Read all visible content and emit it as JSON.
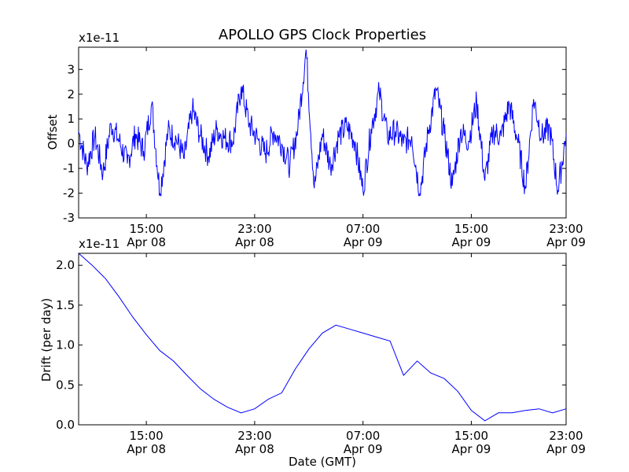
{
  "chart_data": [
    {
      "type": "line",
      "title": "APOLLO GPS Clock Properties",
      "ylabel": "Offset",
      "y_multiplier": "x1e-11",
      "ylim": [
        -3,
        3.9
      ],
      "yticks": [
        -3,
        -2,
        -1,
        0,
        1,
        2,
        3
      ],
      "ytick_labels": [
        "-3",
        "-2",
        "-1",
        "0",
        "1",
        "2",
        "3"
      ],
      "xticks": [
        {
          "time": "15:00",
          "date": "Apr 08"
        },
        {
          "time": "23:00",
          "date": "Apr 08"
        },
        {
          "time": "07:00",
          "date": "Apr 09"
        },
        {
          "time": "15:00",
          "date": "Apr 09"
        },
        {
          "time": "23:00",
          "date": "Apr 09"
        }
      ],
      "color": "#0000ff",
      "series": [
        {
          "x_hours": [
            0,
            0.6,
            1.2,
            1.8,
            2.4,
            3,
            3.6,
            4.2,
            4.8,
            5.4,
            6,
            6.6,
            7.2,
            7.8,
            8.4,
            9,
            9.6,
            10.2,
            10.8,
            11.4,
            12,
            12.6,
            13.2,
            13.8,
            14.4,
            15,
            15.6,
            16.2,
            16.8,
            17.4,
            18,
            18.6,
            19.2,
            19.8,
            20.4,
            21,
            21.6,
            22.2,
            22.8,
            23.4,
            24,
            24.6,
            25.2,
            25.8,
            26.4,
            27,
            27.6,
            28.2,
            28.8,
            29.4,
            30,
            30.6,
            31.2,
            31.8,
            32.4,
            33,
            33.6,
            34.2,
            34.8,
            35.4,
            36
          ],
          "values": [
            0.5,
            -0.9,
            0.3,
            -1.2,
            0.8,
            0.1,
            -0.8,
            0.4,
            -0.3,
            1.6,
            -2.0,
            0.5,
            0.2,
            -0.6,
            1.4,
            0.3,
            -0.5,
            0.6,
            0.2,
            0.1,
            2.3,
            0.8,
            0.2,
            -0.4,
            0.5,
            0.0,
            -0.9,
            0.7,
            3.8,
            -1.8,
            0.4,
            -0.9,
            0.3,
            0.7,
            0.1,
            -1.9,
            0.6,
            2.1,
            0.3,
            0.5,
            0.0,
            0.3,
            -2.0,
            0.4,
            2.2,
            0.4,
            -1.7,
            0.5,
            0.1,
            1.7,
            -1.5,
            0.5,
            0.3,
            1.6,
            0.2,
            -1.8,
            1.8,
            0.3,
            0.6,
            -1.9,
            0.4
          ]
        }
      ]
    },
    {
      "type": "line",
      "xlabel": "Date (GMT)",
      "ylabel": "Drift (per day)",
      "y_multiplier": "x1e-11",
      "ylim": [
        0,
        2.15
      ],
      "yticks": [
        0,
        0.5,
        1,
        1.5,
        2
      ],
      "ytick_labels": [
        "0.0",
        "0.5",
        "1.0",
        "1.5",
        "2.0"
      ],
      "xticks": [
        {
          "time": "15:00",
          "date": "Apr 08"
        },
        {
          "time": "23:00",
          "date": "Apr 08"
        },
        {
          "time": "07:00",
          "date": "Apr 09"
        },
        {
          "time": "15:00",
          "date": "Apr 09"
        },
        {
          "time": "23:00",
          "date": "Apr 09"
        }
      ],
      "color": "#0000ff",
      "series": [
        {
          "x_hours": [
            0,
            1,
            2,
            3,
            4,
            5,
            6,
            7,
            8,
            9,
            10,
            11,
            12,
            13,
            14,
            15,
            16,
            17,
            18,
            19,
            20,
            21,
            22,
            23,
            24,
            25,
            26,
            27,
            28,
            29,
            30,
            31,
            32,
            33,
            34,
            35,
            36
          ],
          "values": [
            2.15,
            2.0,
            1.83,
            1.6,
            1.35,
            1.13,
            0.93,
            0.8,
            0.62,
            0.45,
            0.32,
            0.22,
            0.15,
            0.2,
            0.32,
            0.4,
            0.7,
            0.95,
            1.15,
            1.25,
            1.2,
            1.15,
            1.1,
            1.05,
            0.62,
            0.8,
            0.65,
            0.58,
            0.42,
            0.18,
            0.05,
            0.15,
            0.15,
            0.18,
            0.2,
            0.15,
            0.2
          ]
        }
      ]
    }
  ]
}
